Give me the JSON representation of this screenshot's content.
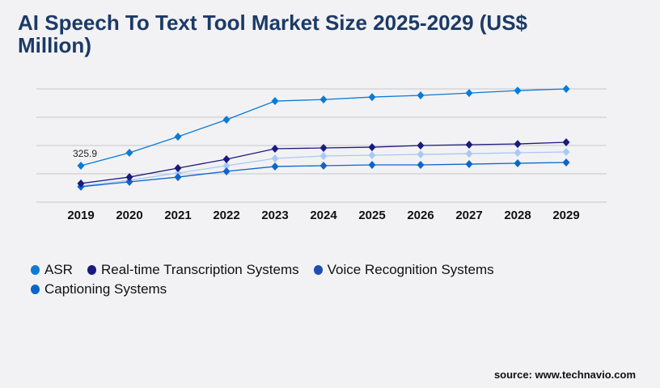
{
  "chart_data": {
    "type": "line",
    "title": "AI Speech To Text Tool Market Size 2025-2029 (US$ Million)",
    "xlabel": "",
    "ylabel": "",
    "x": [
      "2019",
      "2020",
      "2021",
      "2022",
      "2023",
      "2024",
      "2025",
      "2026",
      "2027",
      "2028",
      "2029"
    ],
    "ylim": [
      0,
      1014
    ],
    "grid": true,
    "legend_position": "bottom-left",
    "series": [
      {
        "name": "ASR",
        "color": "#0a7bd6",
        "values": [
          325.9,
          442,
          586,
          738,
          905,
          919,
          941,
          956,
          977,
          999,
          1014
        ]
      },
      {
        "name": "Real-time Transcription Systems",
        "color": "#1b1a7e",
        "values": [
          167,
          224,
          304,
          384,
          478,
          485,
          492,
          507,
          514,
          521,
          536
        ]
      },
      {
        "name": "Voice Recognition Systems",
        "color": "#a9c8f7",
        "legend_color": "#1e4fb0",
        "values": [
          145,
          195,
          261,
          326,
          391,
          413,
          420,
          427,
          434,
          442,
          449
        ]
      },
      {
        "name": "Captioning Systems",
        "color": "#0a66cc",
        "values": [
          138,
          181,
          224,
          275,
          319,
          326,
          333,
          333,
          340,
          348,
          355
        ]
      }
    ],
    "annotations": [
      {
        "series": "ASR",
        "x": "2019",
        "label": "325.9"
      }
    ]
  },
  "source": "source: www.technavio.com"
}
